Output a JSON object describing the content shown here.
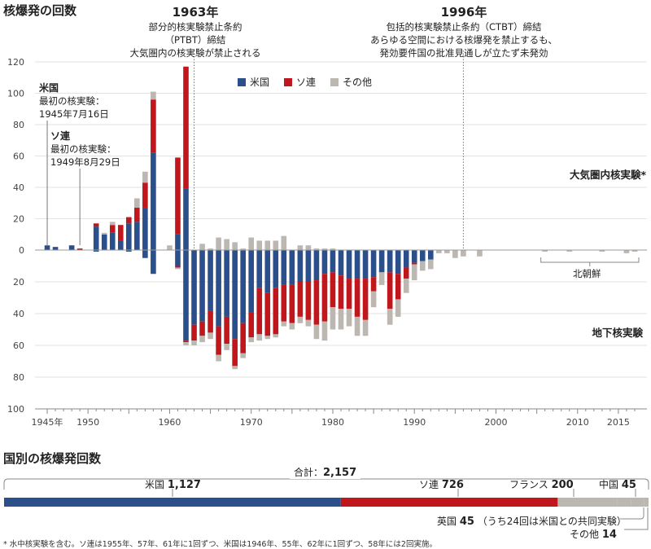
{
  "chart_data": [
    {
      "type": "bar",
      "title": "核爆発の回数",
      "x_tick_labels": [
        "1945年",
        "1950",
        "1960",
        "1970",
        "1980",
        "1990",
        "2000",
        "2010",
        "2015"
      ],
      "x_tick_years": [
        1945,
        1950,
        1960,
        1970,
        1980,
        1990,
        2000,
        2010,
        2015
      ],
      "xlim": [
        1944,
        2019
      ],
      "y_top_ticks": [
        "120",
        "100",
        "80",
        "60",
        "40",
        "20",
        "0"
      ],
      "y_bottom_ticks": [
        "20",
        "40",
        "60",
        "80",
        "100"
      ],
      "ylim_atmospheric": [
        0,
        120
      ],
      "ylim_underground": [
        0,
        100
      ],
      "legend": [
        {
          "name": "米国",
          "color": "#2b4f8b"
        },
        {
          "name": "ソ連",
          "color": "#c0171d"
        },
        {
          "name": "その他",
          "color": "#bdb7b2"
        }
      ],
      "legend_placement": "top-center",
      "upper_label": "大気圏内核実験*",
      "lower_label": "地下核実験",
      "north_korea_label": "北朝鮮",
      "annotations": [
        {
          "year": 1963,
          "heading": "1963年",
          "lines": [
            "部分的核実験禁止条約",
            "（PTBT）締結",
            "大気圏内の核実験が禁止される"
          ]
        },
        {
          "year": 1996,
          "heading": "1996年",
          "lines": [
            "包括的核実験禁止条約（CTBT）締結",
            "あらゆる空間における核爆発を禁止するも、",
            "発効要件国の批准見通しが立たず未発効"
          ]
        }
      ],
      "origins": [
        {
          "year": 1945,
          "heading": "米国",
          "lines": [
            "最初の核実験：",
            "1945年7月16日"
          ]
        },
        {
          "year": 1949,
          "heading": "ソ連",
          "lines": [
            "最初の核実験：",
            "1949年8月29日"
          ]
        }
      ],
      "years": [
        1945,
        1946,
        1947,
        1948,
        1949,
        1950,
        1951,
        1952,
        1953,
        1954,
        1955,
        1956,
        1957,
        1958,
        1959,
        1960,
        1961,
        1962,
        1963,
        1964,
        1965,
        1966,
        1967,
        1968,
        1969,
        1970,
        1971,
        1972,
        1973,
        1974,
        1975,
        1976,
        1977,
        1978,
        1979,
        1980,
        1981,
        1982,
        1983,
        1984,
        1985,
        1986,
        1987,
        1988,
        1989,
        1990,
        1991,
        1992,
        1993,
        1994,
        1995,
        1996,
        1997,
        1998,
        1999,
        2000,
        2001,
        2002,
        2003,
        2004,
        2005,
        2006,
        2007,
        2008,
        2009,
        2010,
        2011,
        2012,
        2013,
        2014,
        2015,
        2016,
        2017
      ],
      "atmospheric": {
        "us": [
          3,
          2,
          0,
          3,
          0,
          0,
          15,
          10,
          11,
          6,
          17,
          18,
          27,
          62,
          0,
          0,
          10,
          39,
          0,
          0,
          0,
          0,
          0,
          0,
          0,
          0,
          0,
          0,
          0,
          0,
          0,
          0,
          0,
          0,
          0,
          0,
          0,
          0,
          0,
          0,
          0,
          0,
          0,
          0,
          0,
          0,
          0,
          0,
          0,
          0,
          0,
          0,
          0,
          0,
          0,
          0,
          0,
          0,
          0,
          0,
          0,
          0,
          0,
          0,
          0,
          0,
          0,
          0,
          0,
          0,
          0,
          0,
          0
        ],
        "ussr": [
          0,
          0,
          0,
          0,
          1,
          0,
          2,
          0,
          5,
          10,
          4,
          9,
          16,
          34,
          0,
          0,
          49,
          78,
          0,
          0,
          0,
          0,
          0,
          0,
          0,
          0,
          0,
          0,
          0,
          0,
          0,
          0,
          0,
          0,
          0,
          0,
          0,
          0,
          0,
          0,
          0,
          0,
          0,
          0,
          0,
          0,
          0,
          0,
          0,
          0,
          0,
          0,
          0,
          0,
          0,
          0,
          0,
          0,
          0,
          0,
          0,
          0,
          0,
          0,
          0,
          0,
          0,
          0,
          0,
          0,
          0,
          0,
          0
        ],
        "other": [
          0,
          0,
          0,
          0,
          0,
          0,
          0,
          1,
          2,
          0,
          0,
          6,
          7,
          5,
          0,
          3,
          0,
          0,
          0,
          4,
          1,
          8,
          7,
          5,
          1,
          8,
          6,
          6,
          6,
          9,
          0,
          3,
          3,
          1,
          1,
          1,
          0,
          0,
          0,
          0,
          0,
          0,
          0,
          0,
          0,
          0,
          0,
          0,
          0,
          0,
          0,
          0,
          0,
          0,
          0,
          0,
          0,
          0,
          0,
          0,
          0,
          0,
          0,
          0,
          0,
          0,
          0,
          0,
          0,
          0,
          0,
          0,
          0
        ]
      },
      "underground": {
        "us": [
          0,
          0,
          0,
          0,
          0,
          0,
          1,
          0,
          0,
          0,
          1,
          0,
          5,
          15,
          0,
          0,
          10,
          57,
          47,
          45,
          38,
          48,
          42,
          56,
          46,
          39,
          24,
          27,
          24,
          22,
          22,
          20,
          20,
          19,
          15,
          14,
          16,
          18,
          18,
          18,
          17,
          14,
          14,
          15,
          11,
          8,
          7,
          6,
          0,
          0,
          0,
          0,
          0,
          0,
          0,
          0,
          0,
          0,
          0,
          0,
          0,
          0,
          0,
          0,
          0,
          0,
          0,
          0,
          0,
          0,
          0,
          0,
          0
        ],
        "ussr": [
          0,
          0,
          0,
          0,
          0,
          0,
          0,
          0,
          0,
          0,
          0,
          0,
          0,
          0,
          0,
          0,
          1,
          1,
          10,
          9,
          14,
          18,
          17,
          17,
          19,
          16,
          29,
          27,
          29,
          23,
          24,
          22,
          24,
          28,
          30,
          22,
          21,
          19,
          24,
          26,
          9,
          0,
          23,
          16,
          7,
          1,
          0,
          0,
          0,
          0,
          0,
          0,
          0,
          0,
          0,
          0,
          0,
          0,
          0,
          0,
          0,
          0,
          0,
          0,
          0,
          0,
          0,
          0,
          0,
          0,
          0,
          0,
          0
        ],
        "other": [
          0,
          0,
          0,
          0,
          0,
          0,
          0,
          0,
          0,
          0,
          0,
          0,
          0,
          0,
          0,
          0,
          1,
          2,
          3,
          4,
          4,
          4,
          4,
          2,
          3,
          3,
          4,
          2,
          2,
          3,
          4,
          4,
          4,
          9,
          12,
          14,
          13,
          11,
          12,
          10,
          10,
          8,
          10,
          11,
          9,
          10,
          6,
          6,
          2,
          2,
          5,
          4,
          0,
          4,
          0,
          0,
          0,
          0,
          0,
          0,
          0,
          1,
          0,
          0,
          1,
          0,
          0,
          0,
          1,
          0,
          0,
          2,
          1
        ]
      }
    },
    {
      "type": "stacked-bar",
      "title": "国別の核爆発回数",
      "total_label": "合計：",
      "total_value": "2,157",
      "total": 2157,
      "segments": [
        {
          "name": "米国",
          "value": 1127,
          "value_label": "1,127",
          "color": "#2b4f8b"
        },
        {
          "name": "ソ連",
          "value": 726,
          "value_label": "726",
          "color": "#c0171d"
        },
        {
          "name": "フランス",
          "value": 200,
          "value_label": "200",
          "color": "#bdb7b2"
        },
        {
          "name": "中国",
          "value": 45,
          "value_label": "45",
          "color": "#bdb7b2"
        },
        {
          "name": "英国",
          "value": 45,
          "value_label": "45",
          "note": "（うち24回は米国との共同実験）",
          "color": "#bdb7b2"
        },
        {
          "name": "その他",
          "value": 14,
          "value_label": "14",
          "color": "#bdb7b2"
        }
      ]
    }
  ],
  "footnote": "* 水中核実験を含む。ソ連は1955年、57年、61年に1回ずつ、米国は1946年、55年、62年に1回ずつ、58年には2回実施。"
}
